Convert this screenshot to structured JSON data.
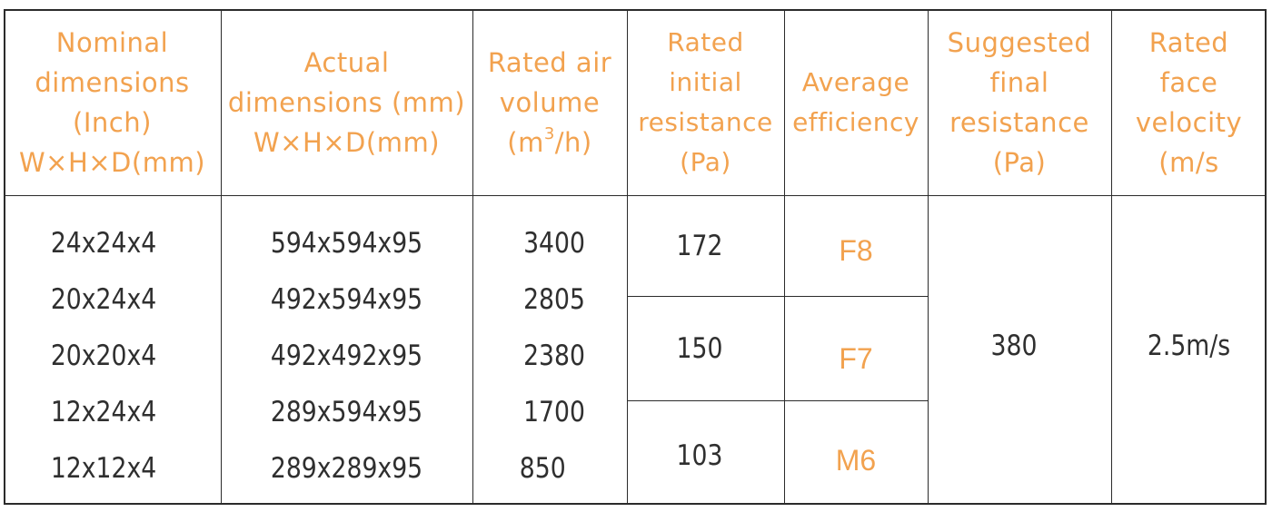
{
  "headers": [
    [
      "Nominal",
      "dimensions",
      "(Inch)",
      "W×H×D(mm)"
    ],
    [
      "Actual",
      "dimensions (mm)",
      "W×H×D(mm)"
    ],
    [
      "Rated air",
      "volume"
    ],
    [
      "Rated",
      "initial",
      "resistance",
      "(Pa)"
    ],
    [
      "Average",
      "efficiency"
    ],
    [
      "Suggested",
      "final",
      "resistance",
      "(Pa)"
    ],
    [
      "Rated",
      "face",
      "velocity",
      "(m/s"
    ]
  ],
  "air_volume_unit": {
    "prefix": "(m",
    "sup": "3",
    "suffix": "/h)"
  },
  "rows": [
    {
      "nominal": "24x24x4",
      "actual": "594x594x95",
      "air_volume": "3400"
    },
    {
      "nominal": "20x24x4",
      "actual": "492x594x95",
      "air_volume": "2805"
    },
    {
      "nominal": "20x20x4",
      "actual": "492x492x95",
      "air_volume": "2380"
    },
    {
      "nominal": "12x24x4",
      "actual": "289x594x95",
      "air_volume": "1700"
    },
    {
      "nominal": "12x12x4",
      "actual": "289x289x95",
      "air_volume": "850"
    }
  ],
  "groups": [
    {
      "initial_resistance": "172",
      "efficiency": "F8"
    },
    {
      "initial_resistance": "150",
      "efficiency": "F7"
    },
    {
      "initial_resistance": "103",
      "efficiency": "M6"
    }
  ],
  "final_resistance": "380",
  "face_velocity": "2.5m/s",
  "colors": {
    "header_text": "#f2a24f",
    "grade_text": "#f2a24f",
    "body_text": "#2f2f2f",
    "grid": "#2b2b2b"
  }
}
